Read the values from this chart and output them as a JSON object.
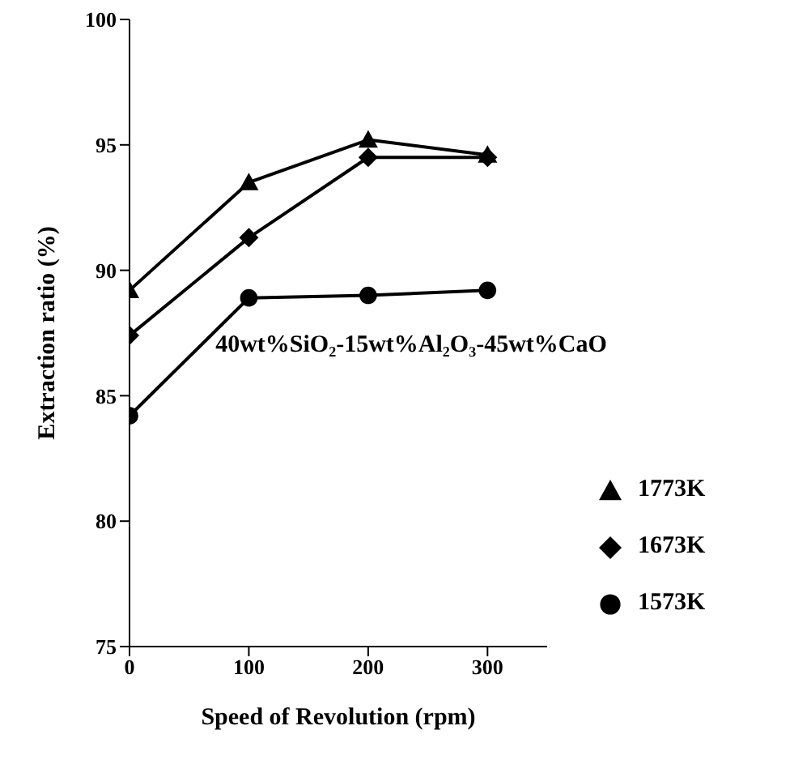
{
  "chart_data": {
    "type": "line",
    "xlabel": "Speed of Revolution (rpm)",
    "ylabel": "Extraction ratio (%)",
    "x": [
      0,
      100,
      200,
      300
    ],
    "series": [
      {
        "name": "1773K",
        "color": "#000000",
        "marker": "triangle",
        "values": [
          89.2,
          93.5,
          95.2,
          94.6
        ]
      },
      {
        "name": "1673K",
        "color": "#000000",
        "marker": "diamond",
        "values": [
          87.4,
          91.3,
          94.5,
          94.5
        ]
      },
      {
        "name": "1573K",
        "color": "#000000",
        "marker": "circle",
        "values": [
          84.2,
          88.9,
          89.0,
          89.2
        ]
      }
    ],
    "xlim": [
      0,
      350
    ],
    "xticks": [
      0,
      100,
      200,
      300
    ],
    "ylim": [
      75,
      100
    ],
    "yticks": [
      75,
      80,
      85,
      90,
      95,
      100
    ],
    "annotations": [
      "40wt%SiO₂-15wt%Al₂O₃-45wt%CaO"
    ],
    "grid": false,
    "legend": "bottom right",
    "line_style": "solid"
  }
}
